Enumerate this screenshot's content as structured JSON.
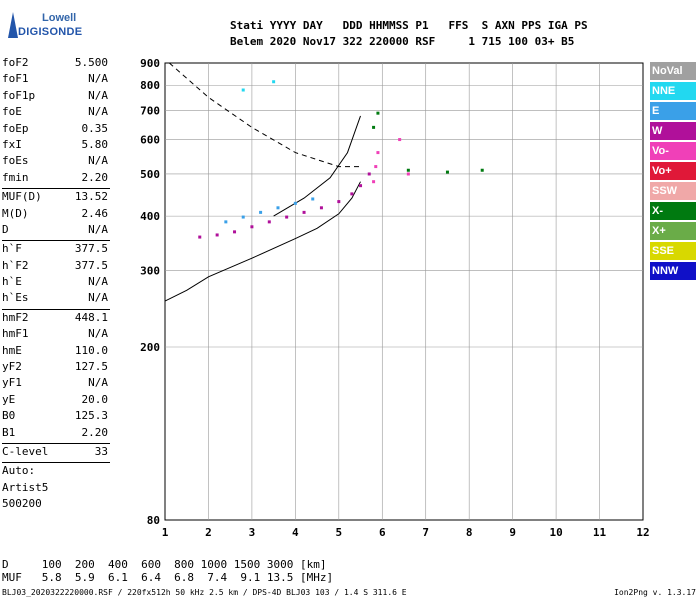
{
  "logo": {
    "line1": "Lowell",
    "line2": "DIGISONDE"
  },
  "header": {
    "line1": "Stati YYYY DAY   DDD HHMMSS P1   FFS  S AXN PPS IGA PS",
    "line2": "Belem 2020 Nov17 322 220000 RSF     1 715 100 03+ B5"
  },
  "params": [
    {
      "k": "foF2",
      "v": "5.500"
    },
    {
      "k": "foF1",
      "v": "N/A"
    },
    {
      "k": "foF1p",
      "v": "N/A"
    },
    {
      "k": "foE",
      "v": "N/A"
    },
    {
      "k": "foEp",
      "v": "0.35"
    },
    {
      "k": "fxI",
      "v": "5.80"
    },
    {
      "k": "foEs",
      "v": "N/A"
    },
    {
      "k": "fmin",
      "v": "2.20"
    },
    {
      "sep": true
    },
    {
      "k": "MUF(D)",
      "v": "13.52"
    },
    {
      "k": "M(D)",
      "v": "2.46"
    },
    {
      "k": "D",
      "v": "N/A"
    },
    {
      "sep": true
    },
    {
      "k": "h`F",
      "v": "377.5"
    },
    {
      "k": "h`F2",
      "v": "377.5"
    },
    {
      "k": "h`E",
      "v": "N/A"
    },
    {
      "k": "h`Es",
      "v": "N/A"
    },
    {
      "sep": true
    },
    {
      "k": "hmF2",
      "v": "448.1"
    },
    {
      "k": "hmF1",
      "v": "N/A"
    },
    {
      "k": "hmE",
      "v": "110.0"
    },
    {
      "k": "yF2",
      "v": "127.5"
    },
    {
      "k": "yF1",
      "v": "N/A"
    },
    {
      "k": "yE",
      "v": "20.0"
    },
    {
      "k": "B0",
      "v": "125.3"
    },
    {
      "k": "B1",
      "v": "2.20"
    },
    {
      "sep": true
    },
    {
      "k": "C-level",
      "v": "33"
    },
    {
      "sep": true
    },
    {
      "k": "Auto:",
      "v": ""
    },
    {
      "k": "Artist5",
      "v": ""
    },
    {
      "k": "500200",
      "v": ""
    }
  ],
  "legend": [
    {
      "label": "NoVal",
      "color": "#a0a0a0"
    },
    {
      "label": "NNE",
      "color": "#22d8f0"
    },
    {
      "label": "E",
      "color": "#3aa0e8"
    },
    {
      "label": "W",
      "color": "#b0109a"
    },
    {
      "label": "Vo-",
      "color": "#f040b8"
    },
    {
      "label": "Vo+",
      "color": "#e01838"
    },
    {
      "label": "SSW",
      "color": "#f0a8a8"
    },
    {
      "label": "X-",
      "color": "#007a10"
    },
    {
      "label": "X+",
      "color": "#6aac48"
    },
    {
      "label": "SSE",
      "color": "#d8d800"
    },
    {
      "label": "NNW",
      "color": "#1010c8"
    }
  ],
  "chart_data": {
    "type": "scatter",
    "xlim": [
      1,
      12
    ],
    "ylim": [
      80,
      900
    ],
    "x_ticks": [
      "1",
      "2",
      "3",
      "4",
      "5",
      "6",
      "7",
      "8",
      "9",
      "10",
      "11",
      "12"
    ],
    "y_ticks": [
      "80",
      "200",
      "300",
      "400",
      "500",
      "600",
      "700",
      "800",
      "900"
    ],
    "y_tick_values": [
      80,
      200,
      300,
      400,
      500,
      600,
      700,
      800,
      900
    ],
    "y_scale": "log",
    "grid": true,
    "series": [
      {
        "name": "W",
        "color": "#b0109a",
        "points": [
          [
            1.8,
            358
          ],
          [
            2.2,
            362
          ],
          [
            2.6,
            368
          ],
          [
            3.0,
            378
          ],
          [
            3.4,
            388
          ],
          [
            3.8,
            398
          ],
          [
            4.2,
            408
          ],
          [
            4.6,
            418
          ],
          [
            5.0,
            432
          ],
          [
            5.3,
            450
          ],
          [
            5.5,
            470
          ],
          [
            5.7,
            500
          ]
        ]
      },
      {
        "name": "Vo-",
        "color": "#f040b8",
        "points": [
          [
            5.8,
            480
          ],
          [
            5.85,
            520
          ],
          [
            5.9,
            560
          ],
          [
            6.4,
            600
          ],
          [
            6.6,
            500
          ]
        ]
      },
      {
        "name": "E",
        "color": "#3aa0e8",
        "points": [
          [
            2.4,
            388
          ],
          [
            2.8,
            398
          ],
          [
            3.2,
            408
          ],
          [
            3.6,
            418
          ],
          [
            4.0,
            428
          ],
          [
            4.4,
            438
          ]
        ]
      },
      {
        "name": "X-",
        "color": "#007a10",
        "points": [
          [
            5.8,
            640
          ],
          [
            5.9,
            690
          ],
          [
            6.6,
            510
          ],
          [
            7.5,
            505
          ],
          [
            8.3,
            510
          ]
        ]
      },
      {
        "name": "NNE",
        "color": "#22d8f0",
        "points": [
          [
            2.8,
            780
          ],
          [
            3.5,
            815
          ]
        ]
      }
    ],
    "dashed_curve": [
      [
        1.1,
        900
      ],
      [
        2.0,
        750
      ],
      [
        3.0,
        640
      ],
      [
        4.0,
        560
      ],
      [
        5.0,
        520
      ],
      [
        5.5,
        520
      ]
    ],
    "profile_curve": [
      [
        1.0,
        255
      ],
      [
        1.5,
        270
      ],
      [
        2.0,
        290
      ],
      [
        3.0,
        320
      ],
      [
        4.0,
        355
      ],
      [
        4.5,
        375
      ],
      [
        5.0,
        405
      ],
      [
        5.3,
        440
      ],
      [
        5.5,
        480
      ]
    ],
    "profile_curve2": [
      [
        3.5,
        400
      ],
      [
        4.2,
        440
      ],
      [
        4.8,
        490
      ],
      [
        5.2,
        560
      ],
      [
        5.5,
        680
      ]
    ]
  },
  "bottom": {
    "line1": "D     100  200  400  600  800 1000 1500 3000 [km]",
    "line2": "MUF   5.8  5.9  6.1  6.4  6.8  7.4  9.1 13.5 [MHz]"
  },
  "footer": "BLJ03_2020322220000.RSF / 220fx512h 50 kHz 2.5 km / DPS-4D BLJ03 103 / 1.4 S 311.6 E",
  "version": "Ion2Png v. 1.3.17"
}
